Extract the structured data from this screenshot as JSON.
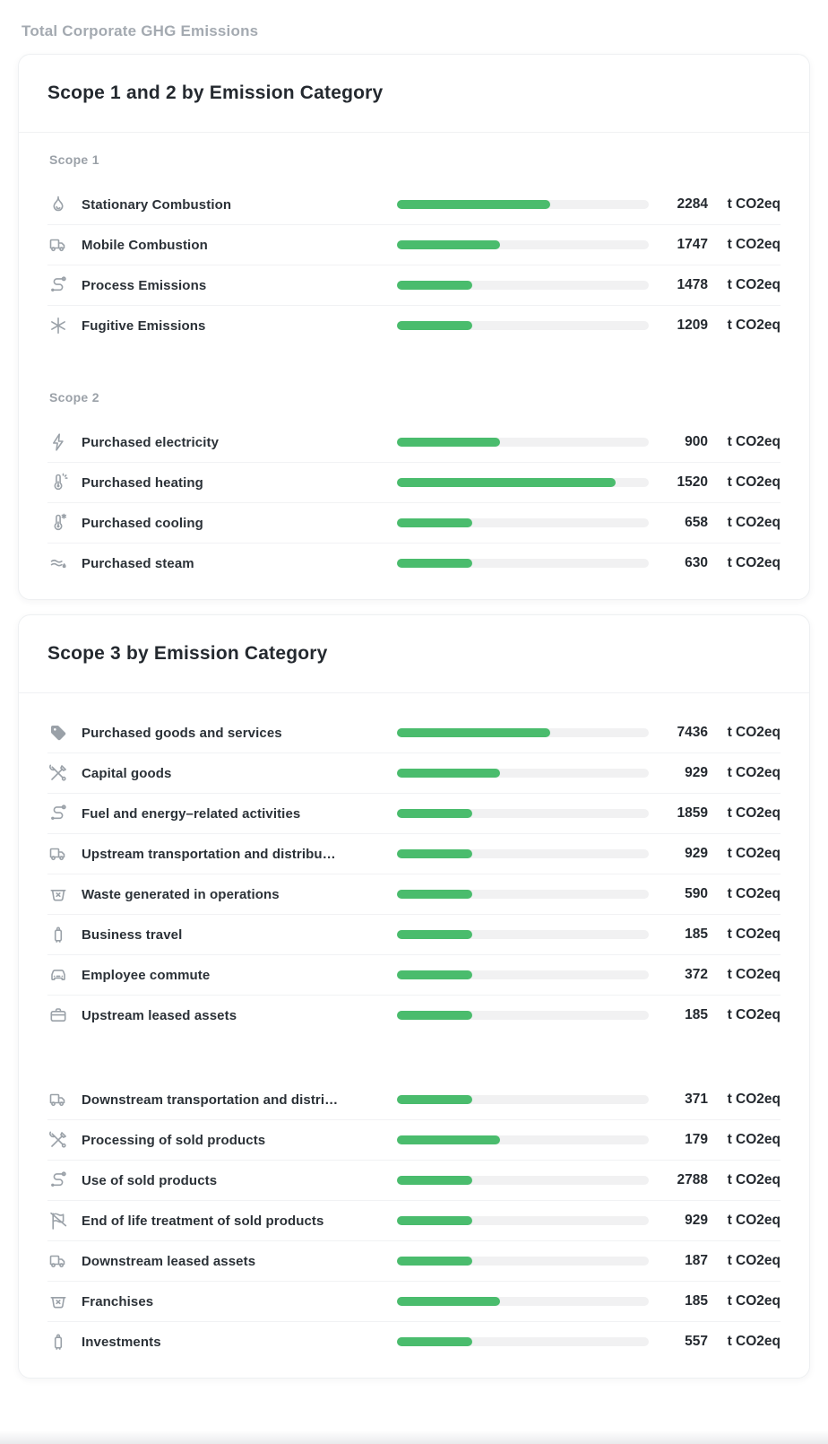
{
  "page": {
    "title": "Total Corporate GHG Emissions"
  },
  "unit_label": "t CO2eq",
  "colors": {
    "bar_fill_green": "#4abc6d",
    "bar_track": "#f1f1f2",
    "text_dark": "#24292f",
    "text_muted": "#9ba1a8"
  },
  "cards": [
    {
      "title": "Scope 1 and 2 by Emission Category",
      "sections": [
        {
          "label": "Scope 1",
          "rows": [
            {
              "icon": "flame-icon",
              "label": "Stationary Combustion",
              "value": "2284",
              "percent": 61
            },
            {
              "icon": "truck-icon",
              "label": "Mobile Combustion",
              "value": "1747",
              "percent": 41
            },
            {
              "icon": "process-route-icon",
              "label": "Process Emissions",
              "value": "1478",
              "percent": 30
            },
            {
              "icon": "snowflake-icon",
              "label": "Fugitive Emissions",
              "value": "1209",
              "percent": 30
            }
          ]
        },
        {
          "label": "Scope 2",
          "rows": [
            {
              "icon": "lightning-icon",
              "label": "Purchased electricity",
              "value": "900",
              "percent": 41
            },
            {
              "icon": "thermometer-sun-icon",
              "label": "Purchased heating",
              "value": "1520",
              "percent": 87
            },
            {
              "icon": "thermometer-snow-icon",
              "label": "Purchased cooling",
              "value": "658",
              "percent": 30
            },
            {
              "icon": "steam-icon",
              "label": "Purchased steam",
              "value": "630",
              "percent": 30
            }
          ]
        }
      ]
    },
    {
      "title": "Scope 3 by Emission Category",
      "sections": [
        {
          "label": "",
          "rows": [
            {
              "icon": "tag-icon",
              "label": "Purchased goods and services",
              "value": "7436",
              "percent": 61
            },
            {
              "icon": "tools-icon",
              "label": "Capital goods",
              "value": "929",
              "percent": 41
            },
            {
              "icon": "process-route-icon",
              "label": "Fuel and energy–related activities",
              "value": "1859",
              "percent": 30
            },
            {
              "icon": "truck-icon",
              "label": "Upstream transportation and distribu…",
              "value": "929",
              "percent": 30
            },
            {
              "icon": "waste-basket-icon",
              "label": "Waste generated in operations",
              "value": "590",
              "percent": 30
            },
            {
              "icon": "luggage-icon",
              "label": "Business travel",
              "value": "185",
              "percent": 30
            },
            {
              "icon": "car-icon",
              "label": "Employee commute",
              "value": "372",
              "percent": 30
            },
            {
              "icon": "briefcase-icon",
              "label": "Upstream leased assets",
              "value": "185",
              "percent": 30
            }
          ]
        },
        {
          "label": "",
          "rows": [
            {
              "icon": "truck-icon",
              "label": "Downstream transportation and distri…",
              "value": "371",
              "percent": 30
            },
            {
              "icon": "tools-icon",
              "label": "Processing of sold products",
              "value": "179",
              "percent": 41
            },
            {
              "icon": "process-route-icon",
              "label": "Use of sold products",
              "value": "2788",
              "percent": 30
            },
            {
              "icon": "flag-slash-icon",
              "label": "End of life treatment of sold products",
              "value": "929",
              "percent": 30
            },
            {
              "icon": "truck-icon",
              "label": "Downstream leased assets",
              "value": "187",
              "percent": 30
            },
            {
              "icon": "waste-basket-icon",
              "label": "Franchises",
              "value": "185",
              "percent": 41
            },
            {
              "icon": "luggage-icon",
              "label": "Investments",
              "value": "557",
              "percent": 30
            }
          ]
        }
      ]
    }
  ],
  "chart_data": [
    {
      "type": "bar",
      "title": "Scope 1 and 2 by Emission Category",
      "unit": "t CO2eq",
      "legend_position": "none",
      "groups": [
        {
          "name": "Scope 1",
          "categories": [
            "Stationary Combustion",
            "Mobile Combustion",
            "Process Emissions",
            "Fugitive Emissions"
          ],
          "values": [
            2284,
            1747,
            1478,
            1209
          ],
          "bar_fill_percent": [
            61,
            41,
            30,
            30
          ]
        },
        {
          "name": "Scope 2",
          "categories": [
            "Purchased electricity",
            "Purchased heating",
            "Purchased cooling",
            "Purchased steam"
          ],
          "values": [
            900,
            1520,
            658,
            630
          ],
          "bar_fill_percent": [
            41,
            87,
            30,
            30
          ]
        }
      ]
    },
    {
      "type": "bar",
      "title": "Scope 3 by Emission Category",
      "unit": "t CO2eq",
      "legend_position": "none",
      "categories": [
        "Purchased goods and services",
        "Capital goods",
        "Fuel and energy–related activities",
        "Upstream transportation and distribution",
        "Waste generated in operations",
        "Business travel",
        "Employee commute",
        "Upstream leased assets",
        "Downstream transportation and distribution",
        "Processing of sold products",
        "Use of sold products",
        "End of life treatment of sold products",
        "Downstream leased assets",
        "Franchises",
        "Investments"
      ],
      "values": [
        7436,
        929,
        1859,
        929,
        590,
        185,
        372,
        185,
        371,
        179,
        2788,
        929,
        187,
        185,
        557
      ],
      "bar_fill_percent": [
        61,
        41,
        30,
        30,
        30,
        30,
        30,
        30,
        30,
        41,
        30,
        30,
        30,
        41,
        30
      ]
    }
  ]
}
